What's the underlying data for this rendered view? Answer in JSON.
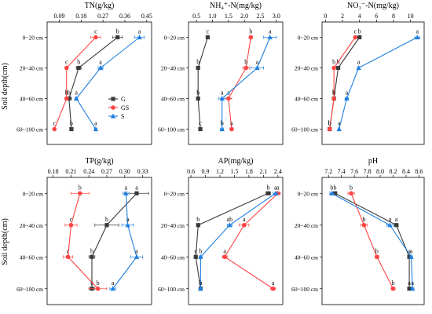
{
  "figure": {
    "ylabel": "Soil depth(cm)",
    "depths": [
      "0~20 cm",
      "20~40 cm",
      "40~60 cm",
      "60~100 cm"
    ],
    "series_colors": {
      "G": "#3a3a3a",
      "GS": "#ff4444",
      "S": "#1e7fe0"
    },
    "legend": [
      "G",
      "GS",
      "S"
    ]
  },
  "chart_data": [
    {
      "type": "line",
      "title": "TN(g/kg)",
      "xticks": [
        "0.09",
        "0.18",
        "0.27",
        "0.36",
        "0.45"
      ],
      "xlim": [
        0.04,
        0.47
      ],
      "grid": false,
      "legend_position": "inside-bottom-left",
      "series": [
        {
          "name": "G",
          "values": [
            0.33,
            0.17,
            0.13,
            0.14
          ],
          "errors": [
            0.02,
            0.01,
            0.01,
            0.005
          ],
          "letters": [
            "b",
            "b",
            "b",
            "b"
          ]
        },
        {
          "name": "GS",
          "values": [
            0.24,
            0.12,
            0.12,
            0.07
          ],
          "errors": [
            0.02,
            0.005,
            0.005,
            0.005
          ],
          "letters": [
            "c",
            "c",
            "b",
            "c"
          ]
        },
        {
          "name": "S",
          "values": [
            0.42,
            0.26,
            0.16,
            0.24
          ],
          "errors": [
            0.02,
            0.01,
            0.005,
            0.005
          ],
          "letters": [
            "a",
            "a",
            "a",
            "a"
          ]
        }
      ]
    },
    {
      "type": "line",
      "title": "NH₄⁺-N(mg/kg)",
      "xticks": [
        "0.5",
        "1.0",
        "1.5",
        "2.0",
        "2.5",
        "3.0"
      ],
      "xlim": [
        0.25,
        3.2
      ],
      "grid": false,
      "series": [
        {
          "name": "G",
          "values": [
            0.85,
            0.55,
            0.55,
            0.62
          ],
          "errors": [
            0.03,
            0.03,
            0.02,
            0.02
          ],
          "letters": [
            "c",
            "b",
            "b",
            "c"
          ]
        },
        {
          "name": "GS",
          "values": [
            2.2,
            2.05,
            1.5,
            1.6
          ],
          "errors": [
            0.05,
            0.1,
            0.1,
            0.05
          ],
          "letters": [
            "b",
            "b",
            "a",
            "a"
          ]
        },
        {
          "name": "S",
          "values": [
            2.8,
            2.4,
            1.3,
            1.3
          ],
          "errors": [
            0.2,
            0.2,
            0.1,
            0.05
          ],
          "letters": [
            "a",
            "a",
            "a",
            "b"
          ]
        }
      ]
    },
    {
      "type": "line",
      "title": "NO₃⁻-N(mg/kg)",
      "xticks": [
        "0",
        "2",
        "4",
        "6",
        "8",
        "10"
      ],
      "xlim": [
        -0.4,
        11.6
      ],
      "grid": false,
      "series": [
        {
          "name": "G",
          "values": [
            4,
            1.5,
            1.0,
            0.5
          ],
          "errors": [
            0.2,
            0.1,
            0.05,
            0.05
          ],
          "letters": [
            "b",
            "b",
            "b",
            "b"
          ]
        },
        {
          "name": "GS",
          "values": [
            3.5,
            1.0,
            1.0,
            0.5
          ],
          "errors": [
            0.1,
            0.1,
            0.05,
            0.05
          ],
          "letters": [
            "c",
            "b",
            "b",
            "b"
          ]
        },
        {
          "name": "S",
          "values": [
            10.8,
            3.9,
            2.5,
            1.6
          ],
          "errors": [
            0.3,
            0.1,
            0.2,
            0.1
          ],
          "letters": [
            "a",
            "a",
            "a",
            "a"
          ]
        }
      ]
    },
    {
      "type": "line",
      "title": "TP(g/kg)",
      "xticks": [
        "0.18",
        "0.21",
        "0.24",
        "0.27",
        "0.30",
        "0.33"
      ],
      "xlim": [
        0.17,
        0.345
      ],
      "grid": false,
      "series": [
        {
          "name": "G",
          "values": [
            0.32,
            0.27,
            0.245,
            0.245
          ],
          "errors": [
            0.02,
            0.02,
            0.005,
            0.005
          ],
          "letters": [
            "a",
            "b",
            "b",
            "c"
          ]
        },
        {
          "name": "GS",
          "values": [
            0.225,
            0.21,
            0.205,
            0.255
          ],
          "errors": [
            0.015,
            0.01,
            0.008,
            0.015
          ],
          "letters": [
            "b",
            "c",
            "c",
            "b"
          ]
        },
        {
          "name": "S",
          "values": [
            0.302,
            0.305,
            0.32,
            0.28
          ],
          "errors": [
            0.005,
            0.01,
            0.01,
            0.005
          ],
          "letters": [
            "a",
            "a",
            "a",
            "a"
          ]
        }
      ]
    },
    {
      "type": "line",
      "title": "AP(mg/kg)",
      "xticks": [
        "0.6",
        "0.9",
        "1.2",
        "1.5",
        "1.8",
        "2.1",
        "2.4"
      ],
      "xlim": [
        0.55,
        2.5
      ],
      "grid": false,
      "series": [
        {
          "name": "G",
          "values": [
            2.2,
            0.75,
            0.7,
            0.8
          ],
          "errors": [
            0.05,
            0.03,
            0.03,
            0.03
          ],
          "letters": [
            "b",
            "b",
            "c",
            "b"
          ]
        },
        {
          "name": "GS",
          "values": [
            2.4,
            1.7,
            1.3,
            2.3
          ],
          "errors": [
            0.05,
            0.1,
            0.05,
            0.05
          ],
          "letters": [
            "a",
            "a",
            "a",
            "a"
          ]
        },
        {
          "name": "S",
          "values": [
            2.35,
            1.4,
            0.8,
            0.8
          ],
          "errors": [
            0.05,
            0.05,
            0.03,
            0.03
          ],
          "letters": [
            "a",
            "ab",
            "b",
            "b"
          ]
        }
      ]
    },
    {
      "type": "line",
      "title": "pH",
      "xticks": [
        "7.2",
        "7.4",
        "7.6",
        "7.8",
        "8.0",
        "8.2",
        "8.4",
        "8.6"
      ],
      "xlim": [
        7.1,
        8.68
      ],
      "grid": false,
      "series": [
        {
          "name": "G",
          "values": [
            7.3,
            8.25,
            8.45,
            8.45
          ],
          "errors": [
            0.03,
            0.03,
            0.02,
            0.02
          ],
          "letters": [
            "b",
            "a",
            "a",
            "a"
          ]
        },
        {
          "name": "GS",
          "values": [
            7.55,
            7.75,
            7.95,
            8.2
          ],
          "errors": [
            0.05,
            0.05,
            0.03,
            0.03
          ],
          "letters": [
            "b",
            "b",
            "b",
            "b"
          ]
        },
        {
          "name": "S",
          "values": [
            7.25,
            8.15,
            8.48,
            8.5
          ],
          "errors": [
            0.03,
            0.05,
            0.02,
            0.02
          ],
          "letters": [
            "b",
            "a",
            "a",
            "a"
          ]
        }
      ]
    }
  ]
}
